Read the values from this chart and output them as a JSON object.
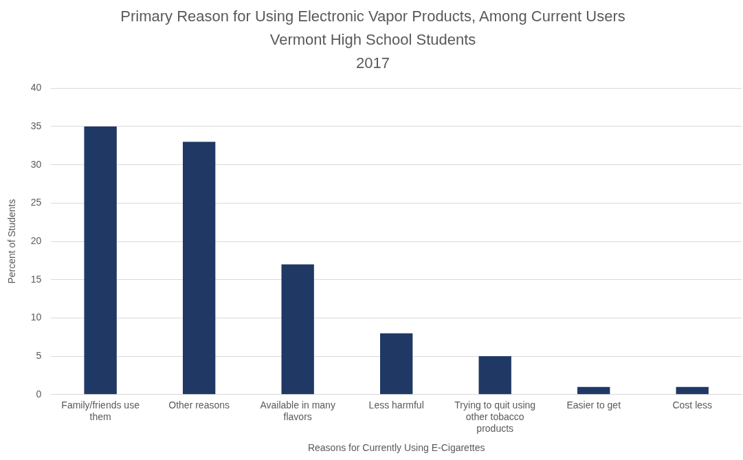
{
  "chart_data": {
    "type": "bar",
    "title": "Primary Reason for Using Electronic Vapor Products, Among Current Users\nVermont High School Students\n2017",
    "xlabel": "Reasons for Currently Using E-Cigarettes",
    "ylabel": "Percent of Students",
    "categories": [
      "Family/friends use them",
      "Other reasons",
      "Available in many flavors",
      "Less harmful",
      "Trying to quit using other tobacco products",
      "Easier to get",
      "Cost less"
    ],
    "values": [
      35,
      33,
      17,
      8,
      5,
      1,
      1
    ],
    "color": "#203864",
    "ylim": [
      0,
      40
    ],
    "yticks": [
      0,
      5,
      10,
      15,
      20,
      25,
      30,
      35,
      40
    ],
    "grid": "y"
  }
}
